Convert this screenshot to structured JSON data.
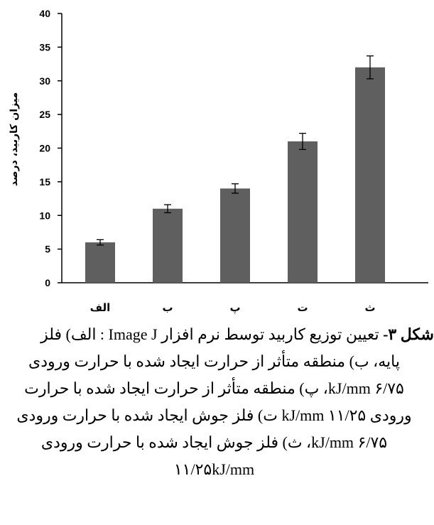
{
  "chart_data": {
    "type": "bar",
    "categories": [
      "الف",
      "ب",
      "پ",
      "ت",
      "ث"
    ],
    "values": [
      6,
      11,
      14,
      21,
      32
    ],
    "errors": [
      0.4,
      0.6,
      0.7,
      1.2,
      1.7
    ],
    "ylabel": "میزان کاربید، درصد",
    "ylim": [
      0,
      40
    ],
    "yticks": [
      0,
      5,
      10,
      15,
      20,
      25,
      30,
      35,
      40
    ],
    "bar_color": "#5f5f5f",
    "grid": false
  },
  "caption": {
    "lead": "شکل ۳-",
    "line1": " تعیین توزیع کاربید توسط نرم افزار Image J : الف) فلز",
    "line2": "پایه، ب) منطقه متأثر از حرارت ایجاد شده با حرارت ورودی",
    "line3": "۶/۷۵ kJ/mm، پ) منطقه متأثر از حرارت ایجاد شده با حرارت",
    "line4": "ورودی  ۱۱/۲۵ kJ/mm ت) فلز جوش ایجاد شده با حرارت ورودی",
    "line5": "۶/۷۵ kJ/mm، ث) فلز جوش ایجاد شده با حرارت ورودی",
    "line6": "۱۱/۲۵kJ/mm"
  }
}
